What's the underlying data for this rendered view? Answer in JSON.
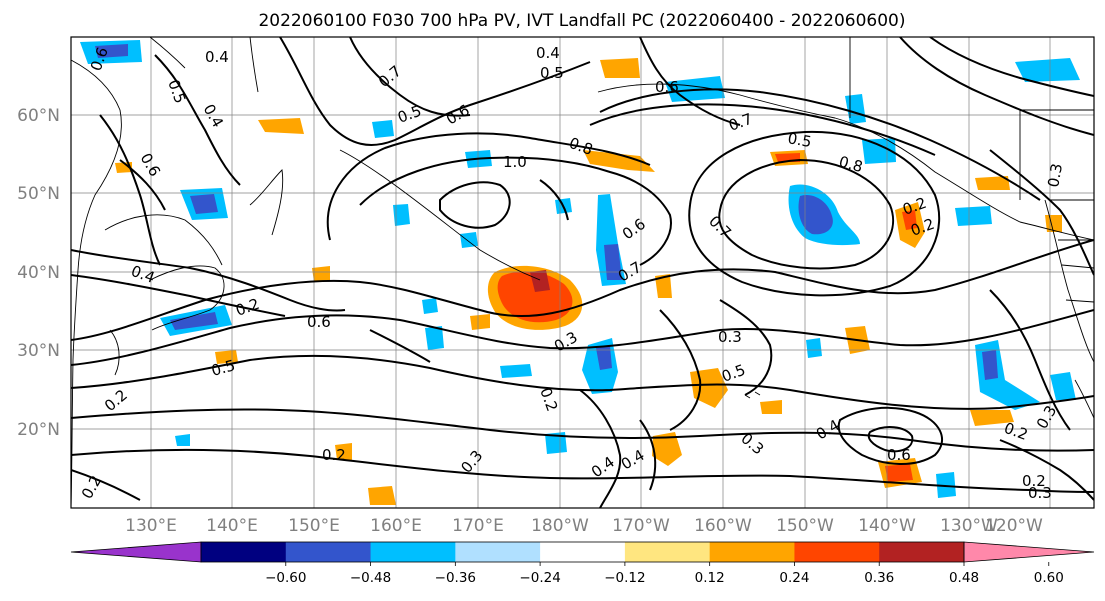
{
  "title": "2022060100 F030 700 hPa PV, IVT Landfall PC (2022060400 - 2022060600)",
  "map": {
    "lat_labels": [
      "60°N",
      "50°N",
      "40°N",
      "30°N",
      "20°N"
    ],
    "lon_labels": [
      "130°E",
      "140°E",
      "150°E",
      "160°E",
      "170°E",
      "180°W",
      "170°W",
      "160°W",
      "150°W",
      "140°W",
      "130°W",
      "120°W"
    ],
    "contour_labels": [
      "0.4",
      "0.6",
      "0.5",
      "0.4",
      "0.4",
      "0.5",
      "0.7",
      "0.5",
      "0.6",
      "0.8",
      "1.0",
      "0.8",
      "0.5",
      "0.7",
      "0.6",
      "0.7",
      "0.6",
      "0.7",
      "0.4",
      "0.2",
      "0.6",
      "0.3",
      "0.5",
      "0.2",
      "0.3",
      "0.5",
      "0.2",
      "0.3",
      "0.4",
      "0.4",
      "0.3",
      "0.4",
      "0.6",
      "0.2",
      "0.3",
      "0.2",
      "0.3",
      "0.2",
      "0.3",
      "0.2",
      "0.6",
      "0.2",
      "0.2"
    ],
    "features": [
      "coastlines",
      "graticule",
      "PV contours",
      "IVT landfall PC shading"
    ]
  },
  "colorbar": {
    "colors": [
      "#9933cc",
      "#000080",
      "#3355cc",
      "#00bfff",
      "#b0e0ff",
      "#ffffff",
      "#ffe680",
      "#ffa500",
      "#ff4500",
      "#b22222",
      "#ff88aa"
    ],
    "labels": [
      "−0.60",
      "−0.48",
      "−0.36",
      "−0.24",
      "−0.12",
      "0.12",
      "0.24",
      "0.36",
      "0.48",
      "0.60"
    ],
    "values": [
      -0.6,
      -0.48,
      -0.36,
      -0.24,
      -0.12,
      0.12,
      0.24,
      0.36,
      0.48,
      0.6
    ]
  }
}
